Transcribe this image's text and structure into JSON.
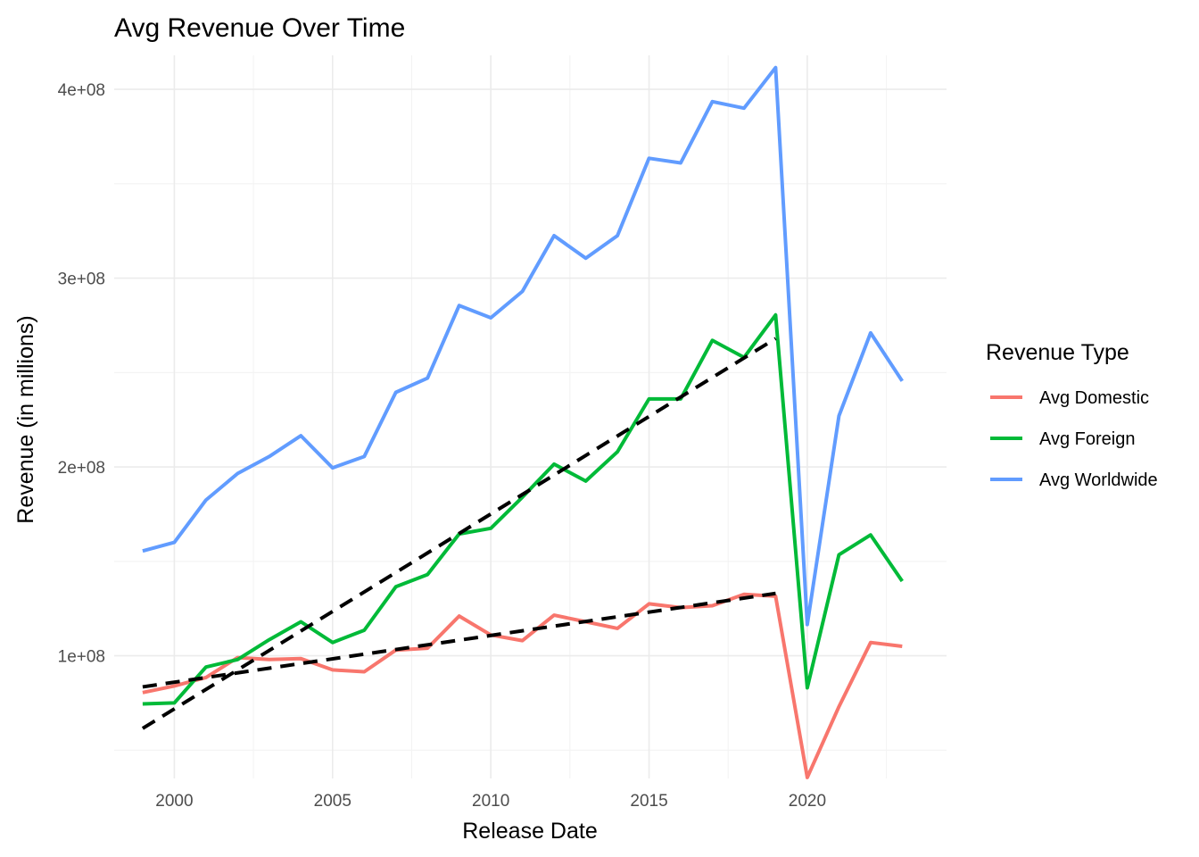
{
  "chart_data": {
    "type": "line",
    "title": "Avg Revenue Over Time",
    "xlabel": "Release Date",
    "ylabel": "Revenue (in millions)",
    "xlim": [
      1998.1,
      2024.4
    ],
    "ylim": [
      35000000,
      418000000
    ],
    "x_ticks": [
      2000,
      2005,
      2010,
      2015,
      2020
    ],
    "x_tick_labels": [
      "2000",
      "2005",
      "2010",
      "2015",
      "2020"
    ],
    "y_ticks": [
      100000000,
      200000000,
      300000000,
      400000000
    ],
    "y_tick_labels": [
      "1e+08",
      "2e+08",
      "3e+08",
      "4e+08"
    ],
    "grid": true,
    "legend": {
      "title": "Revenue Type",
      "position": "right"
    },
    "x": [
      1999,
      2000,
      2001,
      2002,
      2003,
      2004,
      2005,
      2006,
      2007,
      2008,
      2009,
      2010,
      2011,
      2012,
      2013,
      2014,
      2015,
      2016,
      2017,
      2018,
      2019,
      2020,
      2021,
      2022,
      2023
    ],
    "series": [
      {
        "name": "Avg Domestic",
        "color": "#F8766D",
        "values": [
          80500000,
          84000000,
          88500000,
          99000000,
          98000000,
          98500000,
          92500000,
          91500000,
          103000000,
          104000000,
          121000000,
          111000000,
          108000000,
          121500000,
          118000000,
          114500000,
          127500000,
          125500000,
          126500000,
          132500000,
          131500000,
          35500000,
          73000000,
          107000000,
          105000000
        ]
      },
      {
        "name": "Avg Foreign",
        "color": "#00BA38",
        "values": [
          74500000,
          75000000,
          94000000,
          98000000,
          108500000,
          118000000,
          107000000,
          113500000,
          136500000,
          143000000,
          164500000,
          167500000,
          184000000,
          201500000,
          192500000,
          208000000,
          236000000,
          236000000,
          267000000,
          258000000,
          280500000,
          83000000,
          153500000,
          164000000,
          139500000
        ]
      },
      {
        "name": "Avg Worldwide",
        "color": "#619CFF",
        "values": [
          155500000,
          160000000,
          182500000,
          196500000,
          205500000,
          216500000,
          199500000,
          205500000,
          239500000,
          247000000,
          285500000,
          279000000,
          293000000,
          322500000,
          310500000,
          322500000,
          363500000,
          361000000,
          393500000,
          390000000,
          411500000,
          116500000,
          227000000,
          271000000,
          245500000
        ]
      }
    ],
    "trend_lines": [
      {
        "style": "dashed",
        "color": "#000000",
        "x": [
          1999,
          2019
        ],
        "values": [
          83500000,
          133000000
        ]
      },
      {
        "style": "dashed",
        "color": "#000000",
        "x": [
          1999,
          2019
        ],
        "values": [
          61500000,
          268000000
        ]
      }
    ]
  }
}
